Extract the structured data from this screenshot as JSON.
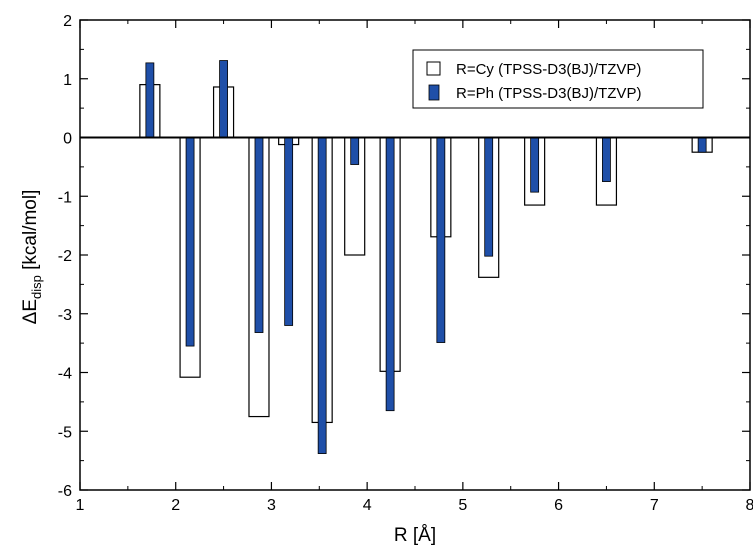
{
  "chart_data": {
    "type": "bar",
    "xlabel": "R [Å]",
    "ylabel_main": "ΔE",
    "ylabel_sub": "disp",
    "ylabel_unit": " [kcal/mol]",
    "xlim": [
      1,
      8
    ],
    "ylim": [
      -6,
      2
    ],
    "xticks": [
      "1",
      "2",
      "3",
      "4",
      "5",
      "6",
      "7",
      "8"
    ],
    "yticks": [
      "-6",
      "-5",
      "-4",
      "-3",
      "-2",
      "-1",
      "0",
      "1",
      "2"
    ],
    "grid": false,
    "legend_position": "top-right",
    "series": [
      {
        "name": "R=Cy (TPSS-D3(BJ)/TZVP)",
        "style": "outline",
        "color": "#000000",
        "fill": "#ffffff",
        "x": [
          1.73,
          2.15,
          2.5,
          2.87,
          3.18,
          3.53,
          3.87,
          4.24,
          4.77,
          5.27,
          5.75,
          6.5,
          7.5
        ],
        "values": [
          0.9,
          -4.08,
          0.86,
          -4.75,
          -0.12,
          -4.85,
          -2.0,
          -3.98,
          -1.69,
          -2.38,
          -1.15,
          -1.15,
          -0.25
        ]
      },
      {
        "name": "R=Ph (TPSS-D3(BJ)/TZVP)",
        "style": "solid",
        "color": "#1f4fa8",
        "x": [
          1.73,
          2.15,
          2.5,
          2.87,
          3.18,
          3.53,
          3.87,
          4.24,
          4.77,
          5.27,
          5.75,
          6.5,
          7.5
        ],
        "values": [
          1.27,
          -3.55,
          1.31,
          -3.32,
          -3.2,
          -5.38,
          -0.46,
          -4.65,
          -3.49,
          -2.02,
          -0.93,
          -0.75,
          -0.25
        ]
      }
    ]
  }
}
